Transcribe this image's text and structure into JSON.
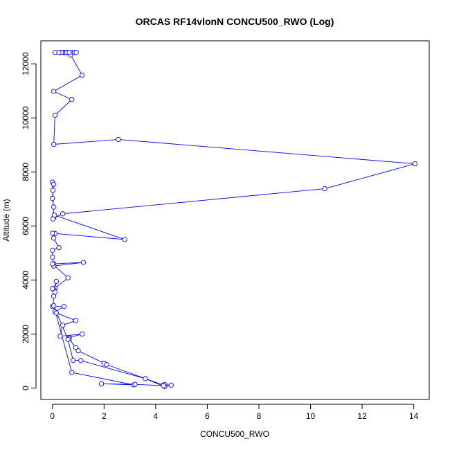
{
  "chart_data": {
    "type": "line",
    "title": "ORCAS RF14vlonN CONCU500_RWO (Log)",
    "xlabel": "CONCU500_RWO",
    "ylabel": "Altitude (m)",
    "xlim": [
      -0.45,
      14.6
    ],
    "ylim": [
      -420,
      12850
    ],
    "xticks": [
      0,
      2,
      4,
      6,
      8,
      10,
      12,
      14
    ],
    "yticks": [
      0,
      2000,
      4000,
      6000,
      8000,
      10000,
      12000
    ],
    "grid": false,
    "color": "#0000ff",
    "series": [
      {
        "points": [
          [
            0.1,
            12420
          ],
          [
            0.3,
            12420
          ],
          [
            0.45,
            12420
          ],
          [
            0.6,
            12420
          ],
          [
            0.75,
            12420
          ],
          [
            0.85,
            12420
          ],
          [
            0.92,
            12420
          ],
          [
            0.7,
            12330
          ],
          [
            0.5,
            12420
          ],
          [
            0.35,
            12420
          ],
          [
            0.25,
            12420
          ],
          [
            0.55,
            12420
          ],
          [
            0.65,
            12420
          ],
          [
            1.15,
            11580
          ],
          [
            0.05,
            10980
          ],
          [
            0.75,
            10680
          ],
          [
            0.1,
            10100
          ],
          [
            0.05,
            9020
          ],
          [
            2.55,
            9200
          ],
          [
            14.05,
            8300
          ],
          [
            10.55,
            7380
          ],
          [
            0.4,
            6450
          ],
          [
            0.05,
            6300
          ],
          [
            0.0,
            7620
          ],
          [
            0.05,
            7540
          ],
          [
            0.02,
            7320
          ],
          [
            0.0,
            7020
          ],
          [
            0.05,
            6700
          ],
          [
            0.02,
            6260
          ],
          [
            0.08,
            6400
          ],
          [
            2.8,
            5500
          ],
          [
            0.1,
            5720
          ],
          [
            0.0,
            5730
          ],
          [
            0.05,
            5550
          ],
          [
            0.25,
            5200
          ],
          [
            0.0,
            5100
          ],
          [
            0.0,
            4850
          ],
          [
            0.05,
            4600
          ],
          [
            1.2,
            4650
          ],
          [
            0.05,
            4520
          ],
          [
            0.0,
            4600
          ],
          [
            0.6,
            4080
          ],
          [
            0.1,
            3700
          ],
          [
            0.15,
            3950
          ],
          [
            0.05,
            3650
          ],
          [
            0.0,
            3680
          ],
          [
            0.05,
            3400
          ],
          [
            0.1,
            3550
          ],
          [
            0.0,
            3020
          ],
          [
            0.45,
            3020
          ],
          [
            0.1,
            2820
          ],
          [
            0.15,
            2780
          ],
          [
            0.9,
            2500
          ],
          [
            0.4,
            2330
          ],
          [
            0.3,
            1920
          ],
          [
            1.15,
            2000
          ],
          [
            0.65,
            1870
          ],
          [
            0.65,
            1820
          ],
          [
            0.9,
            1500
          ],
          [
            1.0,
            1380
          ],
          [
            2.0,
            920
          ],
          [
            2.1,
            870
          ],
          [
            4.3,
            110
          ],
          [
            4.35,
            130
          ],
          [
            4.6,
            110
          ],
          [
            4.35,
            50
          ],
          [
            3.6,
            350
          ],
          [
            1.1,
            1020
          ],
          [
            0.8,
            1030
          ],
          [
            0.6,
            1800
          ],
          [
            0.05,
            3050
          ],
          [
            0.75,
            580
          ],
          [
            3.15,
            120
          ],
          [
            1.9,
            160
          ],
          [
            3.2,
            140
          ],
          [
            4.3,
            90
          ]
        ]
      }
    ]
  }
}
